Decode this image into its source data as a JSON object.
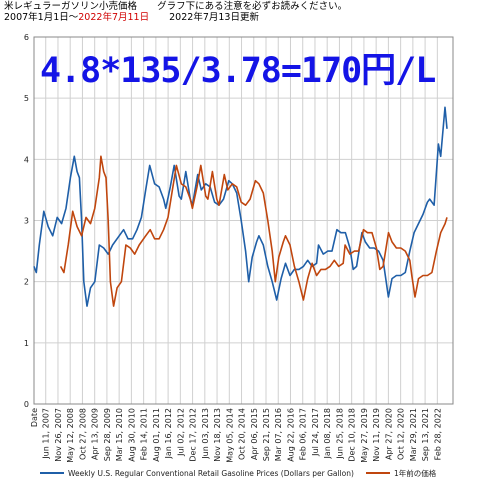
{
  "header": {
    "title": "米レギュラーガソリン小売価格",
    "note": "グラフ下にある注意を必ずお読みください。",
    "period_start": "2007年1月1日～",
    "period_end": "2022年7月11日",
    "updated": "2022年7月13日更新"
  },
  "formula": "4.8*135/3.78=170円/L",
  "colors": {
    "series1": "#1f5fa8",
    "series2": "#c0460e",
    "formula": "#1414e6",
    "period_end": "#d00000",
    "grid": "#d0d0d0"
  },
  "chart_data": {
    "type": "line",
    "ylim": [
      0,
      6
    ],
    "yticks": [
      "0",
      "1",
      "2",
      "3",
      "4",
      "5",
      "6"
    ],
    "xtick_first": "Date",
    "xticks": [
      "Jun 11, 2007",
      "Nov 26, 2007",
      "May 12, 2008",
      "Oct 27, 2008",
      "Apr 13, 2009",
      "Sep 28, 2009",
      "Mar 15, 2010",
      "Aug 30, 2010",
      "Feb 14, 2011",
      "Aug 01, 2011",
      "Jan 16, 2012",
      "Jul 02, 2012",
      "Dec 17, 2012",
      "Jun 03, 2013",
      "Nov 18, 2013",
      "May 05, 2014",
      "Oct 20, 2014",
      "Apr 06, 2015",
      "Sep 21, 2015",
      "Mar 07, 2016",
      "Aug 22, 2016",
      "Feb 06, 2017",
      "Jul 24, 2017",
      "Jan 08, 2018",
      "Jun 25, 2018",
      "Dec 10, 2018",
      "May 27, 2019",
      "Nov 11, 2019",
      "Apr 27, 2020",
      "Oct 12, 2020",
      "Mar 29, 2021",
      "Sep 13, 2021",
      "Feb 28, 2022"
    ],
    "grid": true,
    "legend_position": "bottom",
    "series": [
      {
        "name": "Weekly U.S. Regular Conventional Retail Gasoline Prices (Dollars per Gallon)",
        "points": [
          [
            "2007-01-01",
            2.25
          ],
          [
            "2007-02-01",
            2.15
          ],
          [
            "2007-03-15",
            2.6
          ],
          [
            "2007-05-15",
            3.15
          ],
          [
            "2007-07-15",
            2.9
          ],
          [
            "2007-09-15",
            2.75
          ],
          [
            "2007-11-15",
            3.05
          ],
          [
            "2008-01-15",
            2.95
          ],
          [
            "2008-03-15",
            3.2
          ],
          [
            "2008-05-15",
            3.7
          ],
          [
            "2008-07-07",
            4.05
          ],
          [
            "2008-08-15",
            3.8
          ],
          [
            "2008-09-15",
            3.7
          ],
          [
            "2008-10-15",
            3.0
          ],
          [
            "2008-11-15",
            2.0
          ],
          [
            "2008-12-29",
            1.6
          ],
          [
            "2009-02-15",
            1.9
          ],
          [
            "2009-04-15",
            2.0
          ],
          [
            "2009-06-15",
            2.6
          ],
          [
            "2009-08-15",
            2.55
          ],
          [
            "2009-10-15",
            2.45
          ],
          [
            "2009-12-15",
            2.6
          ],
          [
            "2010-03-15",
            2.75
          ],
          [
            "2010-05-15",
            2.85
          ],
          [
            "2010-07-15",
            2.7
          ],
          [
            "2010-09-15",
            2.7
          ],
          [
            "2010-11-15",
            2.85
          ],
          [
            "2011-01-15",
            3.05
          ],
          [
            "2011-03-15",
            3.5
          ],
          [
            "2011-05-09",
            3.9
          ],
          [
            "2011-07-15",
            3.6
          ],
          [
            "2011-09-15",
            3.55
          ],
          [
            "2011-11-15",
            3.35
          ],
          [
            "2011-12-15",
            3.2
          ],
          [
            "2012-02-15",
            3.55
          ],
          [
            "2012-04-09",
            3.9
          ],
          [
            "2012-06-15",
            3.4
          ],
          [
            "2012-07-15",
            3.35
          ],
          [
            "2012-09-15",
            3.8
          ],
          [
            "2012-11-15",
            3.35
          ],
          [
            "2012-12-15",
            3.25
          ],
          [
            "2013-02-25",
            3.75
          ],
          [
            "2013-04-15",
            3.5
          ],
          [
            "2013-06-15",
            3.6
          ],
          [
            "2013-08-15",
            3.55
          ],
          [
            "2013-10-15",
            3.3
          ],
          [
            "2013-12-15",
            3.25
          ],
          [
            "2014-02-15",
            3.35
          ],
          [
            "2014-04-28",
            3.65
          ],
          [
            "2014-06-15",
            3.6
          ],
          [
            "2014-08-15",
            3.45
          ],
          [
            "2014-10-15",
            3.0
          ],
          [
            "2014-12-15",
            2.5
          ],
          [
            "2015-01-26",
            2.0
          ],
          [
            "2015-03-15",
            2.4
          ],
          [
            "2015-05-15",
            2.65
          ],
          [
            "2015-06-15",
            2.75
          ],
          [
            "2015-08-15",
            2.6
          ],
          [
            "2015-10-15",
            2.25
          ],
          [
            "2015-12-15",
            2.0
          ],
          [
            "2016-02-15",
            1.7
          ],
          [
            "2016-04-15",
            2.05
          ],
          [
            "2016-06-15",
            2.3
          ],
          [
            "2016-08-15",
            2.1
          ],
          [
            "2016-10-15",
            2.2
          ],
          [
            "2016-12-15",
            2.2
          ],
          [
            "2017-02-15",
            2.25
          ],
          [
            "2017-04-15",
            2.35
          ],
          [
            "2017-06-15",
            2.25
          ],
          [
            "2017-08-15",
            2.3
          ],
          [
            "2017-09-11",
            2.6
          ],
          [
            "2017-11-15",
            2.45
          ],
          [
            "2018-01-15",
            2.5
          ],
          [
            "2018-03-15",
            2.5
          ],
          [
            "2018-05-21",
            2.85
          ],
          [
            "2018-07-15",
            2.8
          ],
          [
            "2018-09-15",
            2.8
          ],
          [
            "2018-11-15",
            2.55
          ],
          [
            "2018-12-31",
            2.2
          ],
          [
            "2019-02-15",
            2.25
          ],
          [
            "2019-04-29",
            2.8
          ],
          [
            "2019-06-15",
            2.65
          ],
          [
            "2019-08-15",
            2.55
          ],
          [
            "2019-10-15",
            2.55
          ],
          [
            "2019-12-15",
            2.5
          ],
          [
            "2020-02-15",
            2.35
          ],
          [
            "2020-03-15",
            2.1
          ],
          [
            "2020-04-27",
            1.75
          ],
          [
            "2020-06-15",
            2.05
          ],
          [
            "2020-08-15",
            2.1
          ],
          [
            "2020-10-15",
            2.1
          ],
          [
            "2020-12-15",
            2.15
          ],
          [
            "2021-02-15",
            2.5
          ],
          [
            "2021-04-15",
            2.8
          ],
          [
            "2021-06-15",
            2.95
          ],
          [
            "2021-08-15",
            3.1
          ],
          [
            "2021-10-15",
            3.3
          ],
          [
            "2021-11-15",
            3.35
          ],
          [
            "2022-01-15",
            3.25
          ],
          [
            "2022-03-14",
            4.25
          ],
          [
            "2022-04-15",
            4.05
          ],
          [
            "2022-06-13",
            4.85
          ],
          [
            "2022-07-11",
            4.5
          ]
        ]
      },
      {
        "name": "1年前の価格",
        "points": [
          [
            "2008-01-01",
            2.25
          ],
          [
            "2008-02-15",
            2.15
          ],
          [
            "2008-04-15",
            2.6
          ],
          [
            "2008-06-15",
            3.15
          ],
          [
            "2008-08-15",
            2.9
          ],
          [
            "2008-10-15",
            2.75
          ],
          [
            "2008-12-15",
            3.05
          ],
          [
            "2009-02-15",
            2.95
          ],
          [
            "2009-04-15",
            3.2
          ],
          [
            "2009-06-15",
            3.7
          ],
          [
            "2009-07-07",
            4.05
          ],
          [
            "2009-08-15",
            3.8
          ],
          [
            "2009-09-15",
            3.7
          ],
          [
            "2009-10-15",
            3.0
          ],
          [
            "2009-11-15",
            2.0
          ],
          [
            "2009-12-29",
            1.6
          ],
          [
            "2010-02-15",
            1.9
          ],
          [
            "2010-04-15",
            2.0
          ],
          [
            "2010-06-15",
            2.6
          ],
          [
            "2010-08-15",
            2.55
          ],
          [
            "2010-10-15",
            2.45
          ],
          [
            "2010-12-15",
            2.6
          ],
          [
            "2011-03-15",
            2.75
          ],
          [
            "2011-05-15",
            2.85
          ],
          [
            "2011-07-15",
            2.7
          ],
          [
            "2011-09-15",
            2.7
          ],
          [
            "2011-11-15",
            2.85
          ],
          [
            "2012-01-15",
            3.05
          ],
          [
            "2012-03-15",
            3.5
          ],
          [
            "2012-05-09",
            3.9
          ],
          [
            "2012-07-15",
            3.6
          ],
          [
            "2012-09-15",
            3.55
          ],
          [
            "2012-11-15",
            3.35
          ],
          [
            "2012-12-15",
            3.2
          ],
          [
            "2013-02-15",
            3.55
          ],
          [
            "2013-04-09",
            3.9
          ],
          [
            "2013-06-15",
            3.4
          ],
          [
            "2013-07-15",
            3.35
          ],
          [
            "2013-09-15",
            3.8
          ],
          [
            "2013-11-15",
            3.35
          ],
          [
            "2013-12-15",
            3.25
          ],
          [
            "2014-02-25",
            3.75
          ],
          [
            "2014-04-15",
            3.5
          ],
          [
            "2014-06-15",
            3.6
          ],
          [
            "2014-08-15",
            3.55
          ],
          [
            "2014-10-15",
            3.3
          ],
          [
            "2014-12-15",
            3.25
          ],
          [
            "2015-02-15",
            3.35
          ],
          [
            "2015-04-28",
            3.65
          ],
          [
            "2015-06-15",
            3.6
          ],
          [
            "2015-08-15",
            3.45
          ],
          [
            "2015-10-15",
            3.0
          ],
          [
            "2015-12-15",
            2.5
          ],
          [
            "2016-01-26",
            2.0
          ],
          [
            "2016-03-15",
            2.4
          ],
          [
            "2016-05-15",
            2.65
          ],
          [
            "2016-06-15",
            2.75
          ],
          [
            "2016-08-15",
            2.6
          ],
          [
            "2016-10-15",
            2.25
          ],
          [
            "2016-12-15",
            2.0
          ],
          [
            "2017-02-15",
            1.7
          ],
          [
            "2017-04-15",
            2.05
          ],
          [
            "2017-06-15",
            2.3
          ],
          [
            "2017-08-15",
            2.1
          ],
          [
            "2017-10-15",
            2.2
          ],
          [
            "2017-12-15",
            2.2
          ],
          [
            "2018-02-15",
            2.25
          ],
          [
            "2018-04-15",
            2.35
          ],
          [
            "2018-06-15",
            2.25
          ],
          [
            "2018-08-15",
            2.3
          ],
          [
            "2018-09-11",
            2.6
          ],
          [
            "2018-11-15",
            2.45
          ],
          [
            "2019-01-15",
            2.5
          ],
          [
            "2019-03-15",
            2.5
          ],
          [
            "2019-05-21",
            2.85
          ],
          [
            "2019-07-15",
            2.8
          ],
          [
            "2019-09-15",
            2.8
          ],
          [
            "2019-11-15",
            2.55
          ],
          [
            "2019-12-31",
            2.2
          ],
          [
            "2020-02-15",
            2.25
          ],
          [
            "2020-04-29",
            2.8
          ],
          [
            "2020-06-15",
            2.65
          ],
          [
            "2020-08-15",
            2.55
          ],
          [
            "2020-10-15",
            2.55
          ],
          [
            "2020-12-15",
            2.5
          ],
          [
            "2021-02-15",
            2.35
          ],
          [
            "2021-03-15",
            2.1
          ],
          [
            "2021-04-27",
            1.75
          ],
          [
            "2021-06-15",
            2.05
          ],
          [
            "2021-08-15",
            2.1
          ],
          [
            "2021-10-15",
            2.1
          ],
          [
            "2021-12-15",
            2.15
          ],
          [
            "2022-02-15",
            2.5
          ],
          [
            "2022-04-15",
            2.8
          ],
          [
            "2022-06-15",
            2.95
          ],
          [
            "2022-07-11",
            3.05
          ]
        ]
      }
    ]
  }
}
